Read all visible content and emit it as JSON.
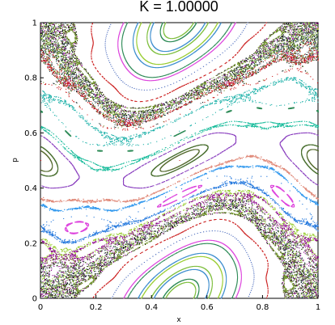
{
  "chart_data": {
    "type": "scatter",
    "title": "K = 1.00000",
    "xlabel": "x",
    "ylabel": "p",
    "xlim": [
      0,
      1
    ],
    "ylim": [
      0,
      1
    ],
    "x_ticks": [
      "0",
      "0.2",
      "0.4",
      "0.6",
      "0.8",
      "1"
    ],
    "y_ticks": [
      "0",
      "0.2",
      "0.4",
      "0.6",
      "0.8",
      "1"
    ],
    "grid": false,
    "legend": "none",
    "map": "standard map (Chirikov)",
    "K": 1.0,
    "series": [
      {
        "p0": 0.05,
        "x0": 0.5,
        "color": "#7fbf3f"
      },
      {
        "p0": 0.09,
        "x0": 0.5,
        "color": "#3f8fcf"
      },
      {
        "p0": 0.13,
        "x0": 0.5,
        "color": "#9acd32"
      },
      {
        "p0": 0.17,
        "x0": 0.5,
        "color": "#2e8b57"
      },
      {
        "p0": 0.21,
        "x0": 0.5,
        "color": "#4f6fbf"
      },
      {
        "p0": 0.235,
        "x0": 0.5,
        "color": "#cc2222"
      },
      {
        "p0": 0.27,
        "x0": 0.1,
        "color": "#d4d"
      },
      {
        "p0": 0.3,
        "x0": 0.15,
        "color": "#2277dd"
      },
      {
        "p0": 0.33,
        "x0": 0.3,
        "color": "#3399ee"
      },
      {
        "p0": 0.36,
        "x0": 0.0,
        "color": "#e08a7a"
      },
      {
        "p0": 0.4,
        "x0": 0.05,
        "color": "#8a3fbf"
      },
      {
        "p0": 0.45,
        "x0": 0.0,
        "color": "#2e8b57"
      },
      {
        "p0": 0.5,
        "x0": 0.0,
        "color": "#cc2222"
      },
      {
        "p0": 0.55,
        "x0": 0.0,
        "color": "#4f6f2f"
      },
      {
        "p0": 0.62,
        "x0": 0.0,
        "color": "#1abc9c"
      },
      {
        "p0": 0.68,
        "x0": 0.0,
        "color": "#2e8b57"
      },
      {
        "p0": 0.74,
        "x0": 0.0,
        "color": "#20b2aa"
      },
      {
        "p0": 0.78,
        "x0": 0.0,
        "color": "#cc2222"
      },
      {
        "p0": 0.82,
        "x0": 0.5,
        "color": "#d4d"
      },
      {
        "p0": 0.86,
        "x0": 0.5,
        "color": "#3f8fcf"
      },
      {
        "p0": 0.9,
        "x0": 0.5,
        "color": "#7fbf3f"
      },
      {
        "p0": 0.94,
        "x0": 0.5,
        "color": "#2e8b57"
      }
    ],
    "chaos_colors": [
      "#000000",
      "#556b2f",
      "#9acd32",
      "#8b008b",
      "#2f4f4f",
      "#6b8e23"
    ]
  }
}
